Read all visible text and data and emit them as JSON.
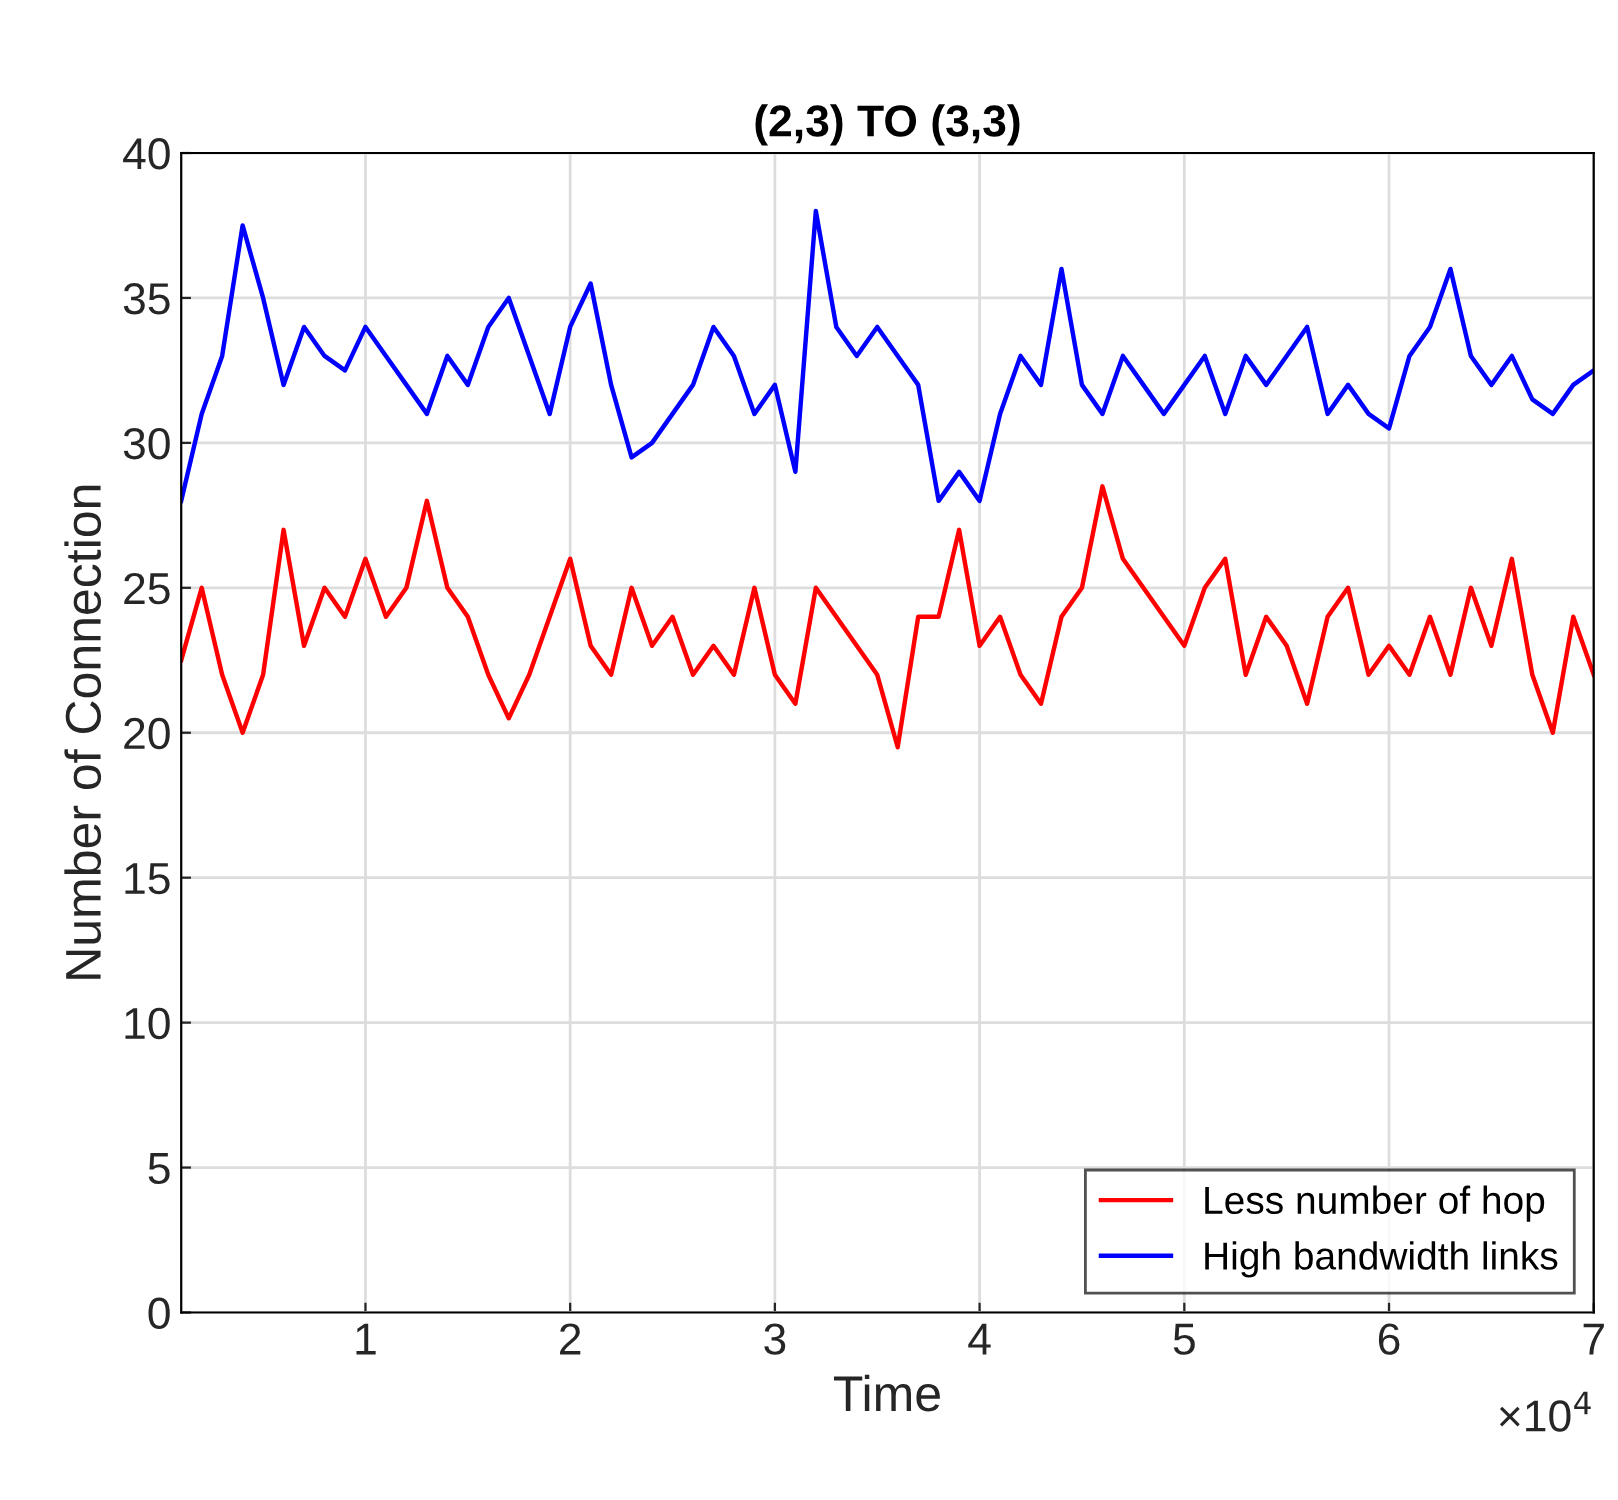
{
  "chart_data": {
    "type": "line",
    "title": "(2,3) TO (3,3)",
    "xlabel": "Time",
    "ylabel": "Number of Connection",
    "x": [
      0.1,
      0.2,
      0.3,
      0.4,
      0.5,
      0.6,
      0.7,
      0.8,
      0.9,
      1.0,
      1.1,
      1.2,
      1.3,
      1.4,
      1.5,
      1.6,
      1.7,
      1.8,
      1.9,
      2.0,
      2.1,
      2.2,
      2.3,
      2.4,
      2.5,
      2.6,
      2.7,
      2.8,
      2.9,
      3.0,
      3.1,
      3.2,
      3.3,
      3.4,
      3.5,
      3.6,
      3.7,
      3.8,
      3.9,
      4.0,
      4.1,
      4.2,
      4.3,
      4.4,
      4.5,
      4.6,
      4.7,
      4.8,
      4.9,
      5.0,
      5.1,
      5.2,
      5.3,
      5.4,
      5.5,
      5.6,
      5.7,
      5.8,
      5.9,
      6.0,
      6.1,
      6.2,
      6.3,
      6.4,
      6.5,
      6.6,
      6.7,
      6.8,
      6.9,
      7.0
    ],
    "series": [
      {
        "name": "Less number of hop",
        "color": "#ff0000",
        "values": [
          22.5,
          25,
          22,
          20,
          22,
          27,
          23,
          25,
          24,
          26,
          24,
          25,
          28,
          25,
          24,
          22,
          20.5,
          22,
          24,
          26,
          23,
          22,
          25,
          23,
          24,
          22,
          23,
          22,
          25,
          22,
          21,
          25,
          24,
          23,
          22,
          19.5,
          24,
          24,
          27,
          23,
          24,
          22,
          21,
          24,
          25,
          28.5,
          26,
          25,
          24,
          23,
          25,
          26,
          22,
          24,
          23,
          21,
          24,
          25,
          22,
          23,
          22,
          24,
          22,
          25,
          23,
          26,
          22,
          20,
          24,
          22
        ]
      },
      {
        "name": "High bandwidth links",
        "color": "#0000ff",
        "values": [
          28,
          31,
          33,
          37.5,
          35,
          32,
          34,
          33,
          32.5,
          34,
          33,
          32,
          31,
          33,
          32,
          34,
          35,
          33,
          31,
          34,
          35.5,
          32,
          29.5,
          30,
          31,
          32,
          34,
          33,
          31,
          32,
          29,
          38,
          34,
          33,
          34,
          33,
          32,
          28,
          29,
          28,
          31,
          33,
          32,
          36,
          32,
          31,
          33,
          32,
          31,
          32,
          33,
          31,
          33,
          32,
          33,
          34,
          31,
          32,
          31,
          30.5,
          33,
          34,
          36,
          33,
          32,
          33,
          31.5,
          31,
          32,
          32.5
        ]
      }
    ],
    "xlim": [
      0.1,
      7
    ],
    "xticks": [
      1,
      2,
      3,
      4,
      5,
      6,
      7
    ],
    "ylim": [
      0,
      40
    ],
    "yticks": [
      0,
      5,
      10,
      15,
      20,
      25,
      30,
      35,
      40
    ],
    "annotations": [
      "×10$^{4}$"
    ],
    "grid": true,
    "legend": "bottom right",
    "line_style": "solid",
    "marker": "none"
  }
}
